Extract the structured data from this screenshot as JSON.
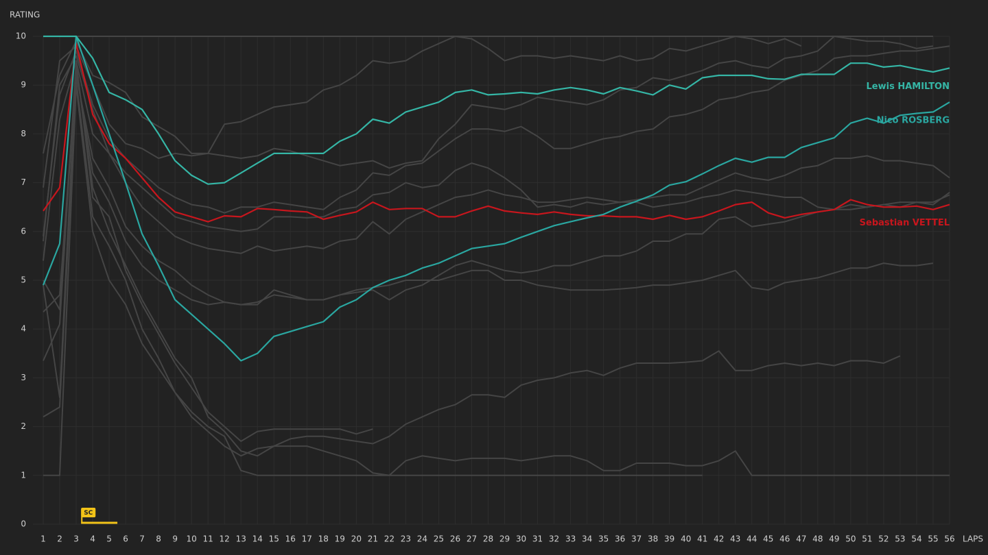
{
  "chart_data": {
    "type": "line",
    "ylabel": "RATING",
    "xlabel": "LAPS",
    "xlim": [
      1,
      56
    ],
    "ylim": [
      0,
      10
    ],
    "yticks": [
      0,
      1,
      2,
      3,
      4,
      5,
      6,
      7,
      8,
      9,
      10
    ],
    "xticks": [
      1,
      2,
      3,
      4,
      5,
      6,
      7,
      8,
      9,
      10,
      11,
      12,
      13,
      14,
      15,
      16,
      17,
      18,
      19,
      20,
      21,
      22,
      23,
      24,
      25,
      26,
      27,
      28,
      29,
      30,
      31,
      32,
      33,
      34,
      35,
      36,
      37,
      38,
      39,
      40,
      41,
      42,
      43,
      44,
      45,
      46,
      47,
      48,
      49,
      50,
      51,
      52,
      53,
      54,
      55,
      56
    ],
    "x": [
      1,
      2,
      3,
      4,
      5,
      6,
      7,
      8,
      9,
      10,
      11,
      12,
      13,
      14,
      15,
      16,
      17,
      18,
      19,
      20,
      21,
      22,
      23,
      24,
      25,
      26,
      27,
      28,
      29,
      30,
      31,
      32,
      33,
      34,
      35,
      36,
      37,
      38,
      39,
      40,
      41,
      42,
      43,
      44,
      45,
      46,
      47,
      48,
      49,
      50,
      51,
      52,
      53,
      54,
      55,
      56
    ],
    "grid": true,
    "safety_car": {
      "label": "SC",
      "start_lap": 3.3,
      "end_lap": 5.5,
      "color": "#f2c318"
    },
    "series": [
      {
        "color": "#454545",
        "values": [
          10,
          10,
          10,
          10,
          10,
          10,
          10,
          10,
          10,
          10,
          10,
          10,
          10,
          10,
          10,
          10,
          10,
          10,
          10,
          10,
          10,
          10,
          10,
          10,
          10,
          10,
          10,
          10,
          10,
          10,
          10,
          10,
          10,
          10,
          10,
          10,
          10,
          10,
          10,
          10,
          10,
          10,
          10,
          10,
          10,
          10,
          10,
          10,
          10,
          10,
          10,
          10,
          10,
          10,
          10,
          null
        ]
      },
      {
        "color": "#454545",
        "values": [
          7.6,
          9.2,
          9.9,
          9.2,
          9.05,
          8.85,
          8.35,
          8.15,
          7.95,
          7.6,
          7.6,
          8.2,
          8.25,
          8.4,
          8.55,
          8.6,
          8.65,
          8.9,
          9.0,
          9.2,
          9.5,
          9.45,
          9.5,
          9.7,
          9.85,
          10,
          9.95,
          9.75,
          9.5,
          9.6,
          9.6,
          9.55,
          9.6,
          9.55,
          9.5,
          9.6,
          9.5,
          9.55,
          9.75,
          9.7,
          9.8,
          9.9,
          10,
          9.95,
          9.85,
          9.95,
          9.8,
          null,
          null,
          null,
          null,
          null,
          null,
          null,
          null,
          null
        ]
      },
      {
        "color": "#454545",
        "values": [
          6.9,
          9.5,
          9.8,
          9.0,
          8.2,
          7.8,
          7.7,
          7.5,
          7.6,
          7.55,
          7.6,
          7.55,
          7.5,
          7.55,
          7.7,
          7.65,
          7.55,
          7.45,
          7.35,
          7.4,
          7.45,
          7.3,
          7.4,
          7.45,
          7.9,
          8.2,
          8.6,
          8.55,
          8.5,
          8.6,
          8.75,
          8.7,
          8.65,
          8.6,
          8.7,
          8.9,
          8.95,
          9.15,
          9.1,
          9.2,
          9.3,
          9.45,
          9.5,
          9.4,
          9.35,
          9.55,
          9.6,
          9.7,
          10,
          9.95,
          9.9,
          9.9,
          9.85,
          9.75,
          9.8,
          null
        ]
      },
      {
        "color": "#454545",
        "values": [
          5.9,
          8.8,
          9.7,
          8.6,
          7.9,
          7.5,
          7.2,
          6.9,
          6.7,
          6.55,
          6.5,
          6.38,
          6.5,
          6.5,
          6.6,
          6.55,
          6.5,
          6.45,
          6.7,
          6.85,
          7.2,
          7.15,
          7.35,
          7.4,
          7.65,
          7.9,
          8.1,
          8.1,
          8.05,
          8.15,
          7.95,
          7.7,
          7.7,
          7.8,
          7.9,
          7.95,
          8.05,
          8.1,
          8.35,
          8.4,
          8.5,
          8.7,
          8.75,
          8.85,
          8.9,
          9.1,
          9.2,
          9.3,
          9.55,
          9.6,
          9.6,
          9.65,
          9.7,
          9.7,
          9.75,
          9.8
        ]
      },
      {
        "color": "#454545",
        "values": [
          5.4,
          8.3,
          9.5,
          8.0,
          7.6,
          7.2,
          6.9,
          6.6,
          6.3,
          6.2,
          6.1,
          6.05,
          6.0,
          6.05,
          6.3,
          6.3,
          6.28,
          6.3,
          6.45,
          6.5,
          6.75,
          6.8,
          7.0,
          6.9,
          6.95,
          7.25,
          7.4,
          7.3,
          7.1,
          6.85,
          6.5,
          6.55,
          6.5,
          6.6,
          6.55,
          6.6,
          6.65,
          6.7,
          6.75,
          6.75,
          6.9,
          7.05,
          7.2,
          7.1,
          7.05,
          7.15,
          7.3,
          7.35,
          7.5,
          7.5,
          7.55,
          7.45,
          7.45,
          7.4,
          7.35,
          7.1
        ]
      },
      {
        "color": "#454545",
        "values": [
          5.8,
          9.0,
          9.6,
          8.5,
          7.6,
          7.0,
          6.5,
          6.2,
          5.9,
          5.75,
          5.65,
          5.6,
          5.55,
          5.7,
          5.6,
          5.65,
          5.7,
          5.65,
          5.8,
          5.85,
          6.2,
          5.95,
          6.25,
          6.4,
          6.55,
          6.7,
          6.75,
          6.85,
          6.75,
          6.7,
          6.6,
          6.6,
          6.65,
          6.7,
          6.65,
          6.6,
          6.6,
          6.5,
          6.55,
          6.6,
          6.7,
          6.75,
          6.85,
          6.8,
          6.75,
          6.7,
          6.7,
          6.5,
          6.45,
          6.45,
          6.5,
          6.55,
          6.6,
          6.6,
          6.6,
          6.75
        ]
      },
      {
        "color": "#454545",
        "values": [
          4.35,
          4.7,
          9.2,
          7.5,
          6.9,
          6.1,
          5.7,
          5.4,
          5.2,
          4.9,
          4.7,
          4.55,
          4.5,
          4.5,
          4.8,
          4.7,
          4.6,
          4.6,
          4.7,
          4.75,
          4.8,
          4.6,
          4.8,
          4.9,
          5.1,
          5.3,
          5.4,
          5.3,
          5.2,
          5.15,
          5.2,
          5.3,
          5.3,
          5.4,
          5.5,
          5.5,
          5.6,
          5.8,
          5.8,
          5.95,
          5.95,
          6.25,
          6.3,
          6.1,
          6.15,
          6.2,
          6.3,
          6.4,
          6.45,
          6.55,
          6.5,
          6.55,
          6.5,
          6.6,
          6.55,
          6.8
        ]
      },
      {
        "color": "#454545",
        "values": [
          5.0,
          4.4,
          9.3,
          7.2,
          6.6,
          5.8,
          5.3,
          5.0,
          4.8,
          4.6,
          4.5,
          4.55,
          4.5,
          4.55,
          4.7,
          4.65,
          4.6,
          4.6,
          4.7,
          4.8,
          4.85,
          4.9,
          5.0,
          5.0,
          5.0,
          5.1,
          5.2,
          5.2,
          5.0,
          5.0,
          4.9,
          4.85,
          4.8,
          4.8,
          4.8,
          4.82,
          4.85,
          4.9,
          4.9,
          4.95,
          5.0,
          5.1,
          5.2,
          4.85,
          4.8,
          4.95,
          5.0,
          5.05,
          5.15,
          5.25,
          5.25,
          5.35,
          5.3,
          5.3,
          5.35,
          null
        ]
      },
      {
        "color": "#454545",
        "values": [
          3.35,
          4.1,
          9.5,
          6.7,
          6.3,
          5.2,
          4.5,
          3.9,
          3.3,
          2.8,
          2.3,
          2.0,
          1.7,
          1.9,
          1.95,
          1.95,
          1.95,
          1.95,
          1.95,
          1.85,
          1.95,
          null,
          null,
          null,
          null,
          null,
          null,
          null,
          null,
          null,
          null,
          null,
          null,
          null,
          null,
          null,
          null,
          null,
          null,
          null,
          null,
          null,
          null,
          null,
          null,
          null,
          null,
          null,
          null,
          null,
          null,
          null,
          null,
          null,
          null,
          null
        ]
      },
      {
        "color": "#454545",
        "values": [
          4.9,
          2.6,
          9.4,
          6.9,
          6.0,
          5.3,
          4.6,
          4.0,
          3.4,
          3.0,
          2.2,
          1.9,
          1.5,
          1.4,
          1.6,
          1.75,
          1.8,
          1.8,
          1.75,
          1.7,
          1.65,
          1.8,
          2.05,
          2.2,
          2.35,
          2.45,
          2.65,
          2.65,
          2.6,
          2.85,
          2.95,
          3.0,
          3.1,
          3.15,
          3.05,
          3.2,
          3.3,
          3.3,
          3.3,
          3.32,
          3.35,
          3.55,
          3.15,
          3.15,
          3.25,
          3.3,
          3.25,
          3.3,
          3.25,
          3.35,
          3.35,
          3.3,
          3.45,
          null,
          null,
          null
        ]
      },
      {
        "color": "#454545",
        "values": [
          2.2,
          2.4,
          9.1,
          6.3,
          5.7,
          5.0,
          4.0,
          3.4,
          2.7,
          2.2,
          1.9,
          1.6,
          1.4,
          1.55,
          1.6,
          1.6,
          1.6,
          1.5,
          1.4,
          1.3,
          1.05,
          1.0,
          1.3,
          1.4,
          1.35,
          1.3,
          1.35,
          1.35,
          1.35,
          1.3,
          1.35,
          1.4,
          1.4,
          1.3,
          1.1,
          1.1,
          1.25,
          1.25,
          1.25,
          1.2,
          1.2,
          1.3,
          1.5,
          1.0,
          1.0,
          1.0,
          1.0,
          1.0,
          1.0,
          1.0,
          1.0,
          1.0,
          1.0,
          1.0,
          1.0,
          1.0
        ]
      },
      {
        "color": "#454545",
        "values": [
          1.0,
          1.0,
          9.0,
          6.0,
          5.0,
          4.5,
          3.7,
          3.2,
          2.7,
          2.3,
          2.0,
          1.8,
          1.1,
          1.0,
          1.0,
          1.0,
          1.0,
          1.0,
          1.0,
          1.0,
          1.0,
          1.0,
          1.0,
          1.0,
          1.0,
          1.0,
          1.0,
          1.0,
          1.0,
          1.0,
          1.0,
          1.0,
          1.0,
          1.0,
          1.0,
          1.0,
          1.0,
          1.0,
          1.0,
          1.0,
          1.0,
          null,
          null,
          null,
          null,
          null,
          null,
          null,
          null,
          null,
          null,
          null,
          null,
          null,
          null,
          null
        ]
      },
      {
        "name": "Sebastian VETTEL",
        "color": "#c8161d",
        "values": [
          6.42,
          6.9,
          9.85,
          8.4,
          7.8,
          7.5,
          7.1,
          6.7,
          6.4,
          6.3,
          6.2,
          6.32,
          6.3,
          6.47,
          6.45,
          6.42,
          6.4,
          6.25,
          6.33,
          6.4,
          6.6,
          6.45,
          6.47,
          6.47,
          6.3,
          6.3,
          6.42,
          6.52,
          6.42,
          6.38,
          6.35,
          6.4,
          6.35,
          6.32,
          6.32,
          6.3,
          6.3,
          6.25,
          6.33,
          6.25,
          6.3,
          6.42,
          6.55,
          6.6,
          6.38,
          6.28,
          6.35,
          6.4,
          6.45,
          6.65,
          6.55,
          6.5,
          6.5,
          6.52,
          6.45,
          6.55
        ]
      },
      {
        "name": "Nico ROSBERG",
        "color": "#2aa7a1",
        "values": [
          4.9,
          5.75,
          10,
          9.0,
          8.0,
          7.0,
          5.95,
          5.3,
          4.6,
          4.3,
          4.0,
          3.7,
          3.35,
          3.5,
          3.85,
          3.95,
          4.05,
          4.15,
          4.45,
          4.6,
          4.85,
          5.0,
          5.1,
          5.25,
          5.35,
          5.5,
          5.65,
          5.7,
          5.75,
          5.88,
          6.0,
          6.12,
          6.2,
          6.28,
          6.35,
          6.5,
          6.62,
          6.75,
          6.95,
          7.02,
          7.18,
          7.35,
          7.5,
          7.42,
          7.52,
          7.52,
          7.72,
          7.82,
          7.92,
          8.22,
          8.32,
          8.22,
          8.38,
          8.42,
          8.45,
          8.65
        ]
      },
      {
        "name": "Lewis HAMILTON",
        "color": "#35b6a6",
        "values": [
          10,
          10,
          10,
          9.55,
          8.85,
          8.7,
          8.5,
          8.0,
          7.45,
          7.15,
          6.97,
          7.0,
          7.2,
          7.4,
          7.6,
          7.6,
          7.6,
          7.6,
          7.85,
          8.0,
          8.3,
          8.22,
          8.45,
          8.55,
          8.65,
          8.85,
          8.9,
          8.8,
          8.82,
          8.85,
          8.82,
          8.9,
          8.95,
          8.9,
          8.82,
          8.95,
          8.88,
          8.8,
          9.0,
          8.92,
          9.15,
          9.2,
          9.2,
          9.2,
          9.13,
          9.12,
          9.22,
          9.22,
          9.22,
          9.45,
          9.45,
          9.37,
          9.4,
          9.33,
          9.27,
          9.35
        ]
      }
    ]
  }
}
